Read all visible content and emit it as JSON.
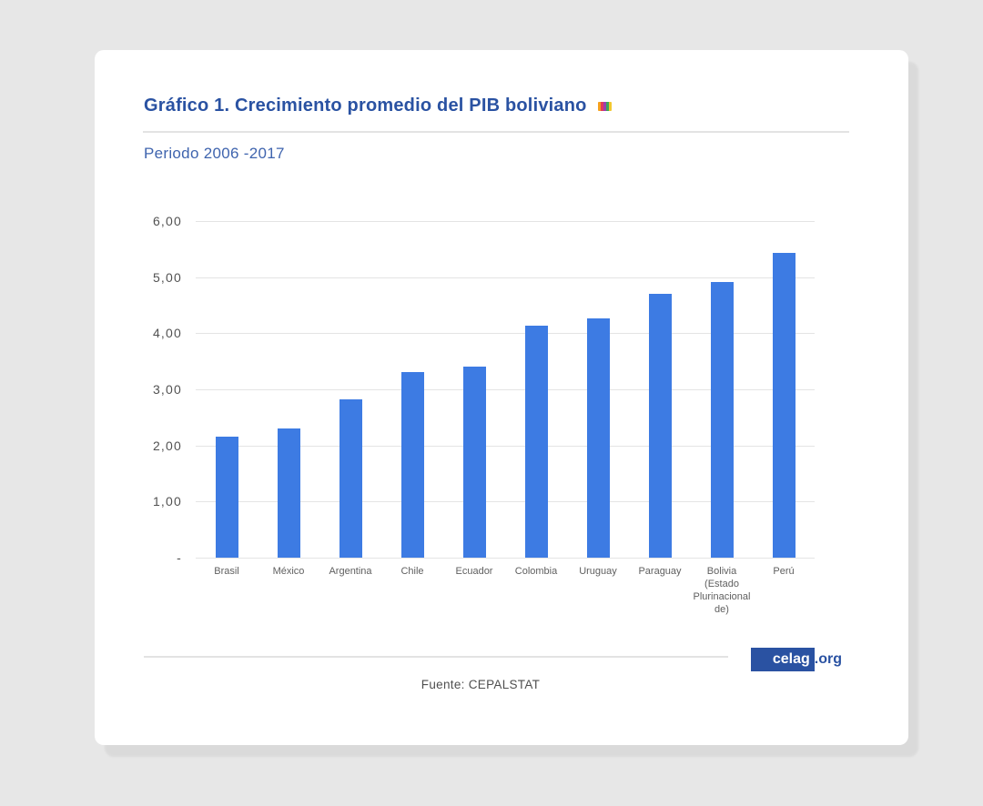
{
  "header": {
    "title": "Gráfico 1. Crecimiento promedio del PIB boliviano",
    "subtitle": "Periodo 2006 -2017",
    "icon_colors": [
      "#f5a01e",
      "#e2395a",
      "#9c3fae",
      "#3ea35c",
      "#f3c82e"
    ]
  },
  "chart_data": {
    "type": "bar",
    "title": "Gráfico 1. Crecimiento promedio del PIB boliviano",
    "subtitle": "Periodo 2006 -2017",
    "categories": [
      "Brasil",
      "México",
      "Argentina",
      "Chile",
      "Ecuador",
      "Colombia",
      "Uruguay",
      "Paraguay",
      "Bolivia (Estado Plurinacional de)",
      "Perú"
    ],
    "values": [
      2.16,
      2.3,
      2.82,
      3.31,
      3.4,
      4.14,
      4.26,
      4.71,
      4.92,
      5.43
    ],
    "bar_color": "#3d7be3",
    "ylim": [
      0,
      6
    ],
    "y_ticks": [
      {
        "value": 6,
        "label": "6,00"
      },
      {
        "value": 5,
        "label": "5,00"
      },
      {
        "value": 4,
        "label": "4,00"
      },
      {
        "value": 3,
        "label": "3,00"
      },
      {
        "value": 2,
        "label": "2,00"
      },
      {
        "value": 1,
        "label": "1,00"
      },
      {
        "value": 0,
        "label": "-"
      }
    ],
    "grid": true,
    "legend": "none",
    "xlabel": "",
    "ylabel": ""
  },
  "footer": {
    "source": "Fuente: CEPALSTAT",
    "logo_text": "celag",
    "logo_suffix": ".org"
  },
  "colors": {
    "title_blue": "#2a52a2",
    "subtitle_blue": "#3f64ae",
    "bar_blue": "#3d7be3",
    "page_background": "#e7e7e7"
  }
}
